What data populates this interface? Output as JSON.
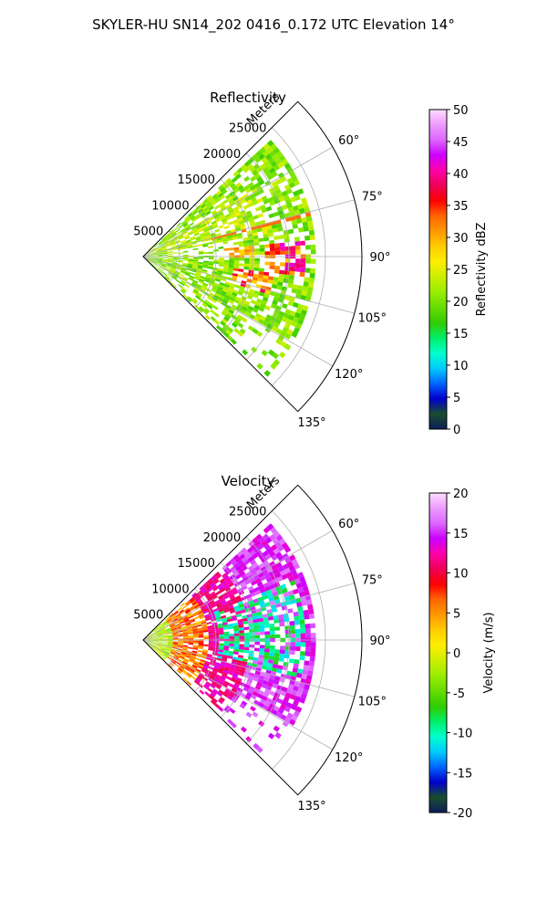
{
  "figure": {
    "suptitle": "SKYLER-HU  SN14_202  0416_0.172 UTC Elevation 14°"
  },
  "panels": [
    {
      "title": "Reflectivity",
      "range_unit_label": "Meters",
      "range_ticks": [
        "5000",
        "10000",
        "15000",
        "20000",
        "25000"
      ],
      "azimuth_ticks": [
        "60°",
        "75°",
        "90°",
        "105°",
        "120°",
        "135°"
      ],
      "colorbar": {
        "label": "Reflectivity dBZ",
        "ticks": [
          "0",
          "5",
          "10",
          "15",
          "20",
          "25",
          "30",
          "35",
          "40",
          "45",
          "50"
        ]
      }
    },
    {
      "title": "Velocity",
      "range_unit_label": "Meters",
      "range_ticks": [
        "5000",
        "10000",
        "15000",
        "20000",
        "25000"
      ],
      "azimuth_ticks": [
        "60°",
        "75°",
        "90°",
        "105°",
        "120°",
        "135°"
      ],
      "colorbar": {
        "label": "Velocity (m/s)",
        "ticks": [
          "-20",
          "-15",
          "-10",
          "-5",
          "0",
          "5",
          "10",
          "15",
          "20"
        ]
      }
    }
  ],
  "chart_data": [
    {
      "type": "heatmap",
      "projection": "polar-sector",
      "title": "Reflectivity",
      "range_label": "Meters",
      "range_lim": [
        0,
        30000
      ],
      "range_ticks": [
        5000,
        10000,
        15000,
        20000,
        25000
      ],
      "azimuth_lim_deg": [
        45,
        135
      ],
      "azimuth_ticks_deg": [
        60,
        75,
        90,
        105,
        120,
        135
      ],
      "grid": true,
      "colorbar_label": "Reflectivity dBZ",
      "clim": [
        0,
        50
      ],
      "colorbar_ticks": [
        0,
        5,
        10,
        15,
        20,
        25,
        30,
        35,
        40,
        45,
        50
      ],
      "colormap_stops": [
        "#0b1d5a",
        "#1a4d2e",
        "#0000cc",
        "#0066ff",
        "#00ccff",
        "#00ffcc",
        "#00ee66",
        "#33cc00",
        "#66dd00",
        "#99ee00",
        "#ccee00",
        "#ffee00",
        "#ffcc00",
        "#ff9900",
        "#ff6600",
        "#ff0000",
        "#ee0055",
        "#ff00aa",
        "#cc00ff",
        "#dd66ff",
        "#ee99ff",
        "#ffddff"
      ],
      "echoes": [
        {
          "az_deg": [
            48,
            134
          ],
          "range_m": [
            0,
            24000
          ],
          "dbz": 18,
          "coverage": "scattered"
        },
        {
          "az_deg": [
            58,
            78
          ],
          "range_m": [
            3000,
            18000
          ],
          "dbz": 22,
          "coverage": "dense"
        },
        {
          "az_deg": [
            84,
            96
          ],
          "range_m": [
            16000,
            22000
          ],
          "dbz": 35,
          "coverage": "dense"
        },
        {
          "az_deg": [
            96,
            106
          ],
          "range_m": [
            12000,
            18000
          ],
          "dbz": 33,
          "coverage": "dense"
        },
        {
          "az_deg": [
            84,
            90
          ],
          "range_m": [
            11000,
            15000
          ],
          "dbz": 30,
          "coverage": "dense"
        }
      ]
    },
    {
      "type": "heatmap",
      "projection": "polar-sector",
      "title": "Velocity",
      "range_label": "Meters",
      "range_lim": [
        0,
        30000
      ],
      "range_ticks": [
        5000,
        10000,
        15000,
        20000,
        25000
      ],
      "azimuth_lim_deg": [
        45,
        135
      ],
      "azimuth_ticks_deg": [
        60,
        75,
        90,
        105,
        120,
        135
      ],
      "grid": true,
      "colorbar_label": "Velocity (m/s)",
      "clim": [
        -20,
        20
      ],
      "colorbar_ticks": [
        -20,
        -15,
        -10,
        -5,
        0,
        5,
        10,
        15,
        20
      ],
      "colormap_stops": [
        "#0b1d5a",
        "#1a4d2e",
        "#0000cc",
        "#0066ff",
        "#00ccff",
        "#00ffcc",
        "#00ee66",
        "#33cc00",
        "#66dd00",
        "#99ee00",
        "#ccee00",
        "#ffee00",
        "#ffcc00",
        "#ff9900",
        "#ff6600",
        "#ff0000",
        "#ee0055",
        "#ff00aa",
        "#cc00ff",
        "#dd66ff",
        "#ee99ff",
        "#ffddff"
      ],
      "echoes": [
        {
          "az_deg": [
            48,
            134
          ],
          "range_m": [
            0,
            4000
          ],
          "velocity_ms": -2
        },
        {
          "az_deg": [
            48,
            134
          ],
          "range_m": [
            4000,
            9000
          ],
          "velocity_ms": 6
        },
        {
          "az_deg": [
            48,
            134
          ],
          "range_m": [
            9000,
            14000
          ],
          "velocity_ms": 12
        },
        {
          "az_deg": [
            48,
            134
          ],
          "range_m": [
            14000,
            20000
          ],
          "velocity_ms": 15
        },
        {
          "az_deg": [
            70,
            100
          ],
          "range_m": [
            10000,
            22000
          ],
          "velocity_ms": -10
        }
      ]
    }
  ]
}
